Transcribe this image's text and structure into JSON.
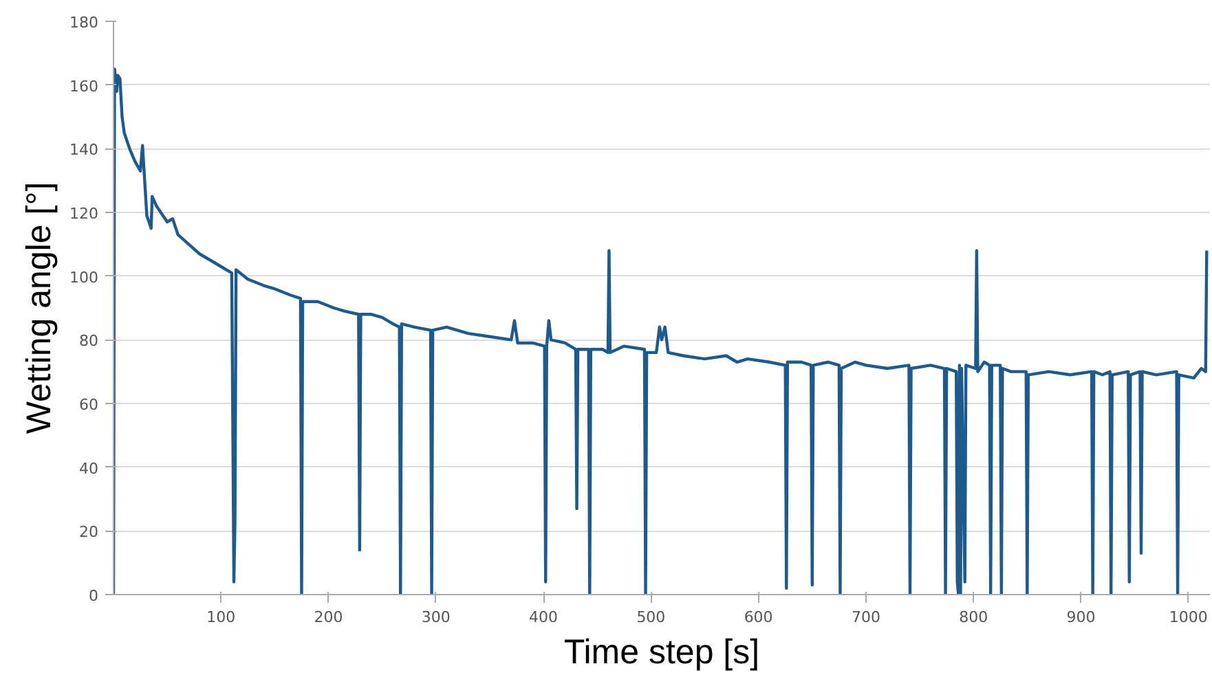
{
  "chart_data": {
    "type": "line",
    "xlabel": "Time step [s]",
    "ylabel": "Wetting angle [°]",
    "xlim": [
      0,
      1020
    ],
    "xticks": [
      100,
      200,
      300,
      400,
      500,
      600,
      700,
      800,
      900,
      1000
    ],
    "ylim": [
      0,
      180
    ],
    "yticks": [
      0,
      20,
      40,
      60,
      80,
      100,
      120,
      140,
      160,
      180
    ],
    "grid": "y",
    "marker": "none",
    "line_style": "solid",
    "series": [
      {
        "color": "#1f5a8c",
        "x": [
          0,
          1,
          3,
          4,
          6,
          8,
          10,
          15,
          20,
          25,
          27,
          29,
          31,
          33,
          35,
          36,
          40,
          50,
          55,
          60,
          70,
          80,
          90,
          100,
          110,
          112,
          113,
          114,
          125,
          140,
          150,
          165,
          174,
          175,
          176,
          190,
          205,
          215,
          228,
          229,
          230,
          240,
          250,
          260,
          266,
          267,
          268,
          280,
          295,
          296,
          297,
          310,
          330,
          350,
          370,
          373,
          376,
          390,
          401,
          402,
          403,
          405,
          407,
          420,
          430,
          431,
          432,
          442,
          443,
          444,
          455,
          460,
          461,
          462,
          475,
          494,
          495,
          496,
          505,
          508,
          510,
          513,
          516,
          530,
          550,
          570,
          580,
          590,
          610,
          625,
          626,
          627,
          640,
          649,
          650,
          651,
          665,
          675,
          676,
          677,
          690,
          700,
          720,
          740,
          741,
          742,
          760,
          773,
          774,
          775,
          784,
          785,
          786,
          787,
          788,
          789,
          792,
          793,
          802,
          803,
          804,
          810,
          815,
          816,
          817,
          825,
          826,
          827,
          835,
          849,
          850,
          851,
          870,
          890,
          910,
          911,
          912,
          920,
          927,
          928,
          929,
          944,
          945,
          946,
          955,
          956,
          957,
          970,
          989,
          990,
          991,
          1005,
          1012,
          1016,
          1017
        ],
        "values": [
          0,
          165,
          158,
          163,
          162,
          150,
          145,
          140,
          136,
          133,
          141,
          130,
          119,
          117,
          115,
          125,
          122,
          117,
          118,
          113,
          110,
          107,
          105,
          103,
          101,
          4,
          23,
          102,
          99,
          97,
          96,
          94,
          93,
          0,
          92,
          92,
          90,
          89,
          88,
          14,
          88,
          88,
          87,
          85,
          84,
          0,
          85,
          84,
          83,
          0,
          83,
          84,
          82,
          81,
          80,
          86,
          79,
          79,
          78,
          4,
          78,
          86,
          80,
          79,
          77,
          27,
          77,
          77,
          0,
          77,
          77,
          76,
          108,
          76,
          78,
          77,
          0,
          76,
          76,
          84,
          80,
          84,
          76,
          75,
          74,
          75,
          73,
          74,
          73,
          72,
          2,
          73,
          73,
          72,
          3,
          72,
          73,
          72,
          0,
          71,
          73,
          72,
          71,
          72,
          0,
          71,
          72,
          71,
          0,
          71,
          70,
          4,
          0,
          72,
          0,
          71,
          4,
          72,
          71,
          108,
          70,
          73,
          72,
          0,
          72,
          72,
          0,
          71,
          70,
          70,
          0,
          69,
          70,
          69,
          70,
          0,
          70,
          69,
          70,
          0,
          69,
          70,
          4,
          69,
          70,
          13,
          70,
          69,
          70,
          0,
          69,
          68,
          71,
          70,
          108
        ]
      }
    ]
  }
}
